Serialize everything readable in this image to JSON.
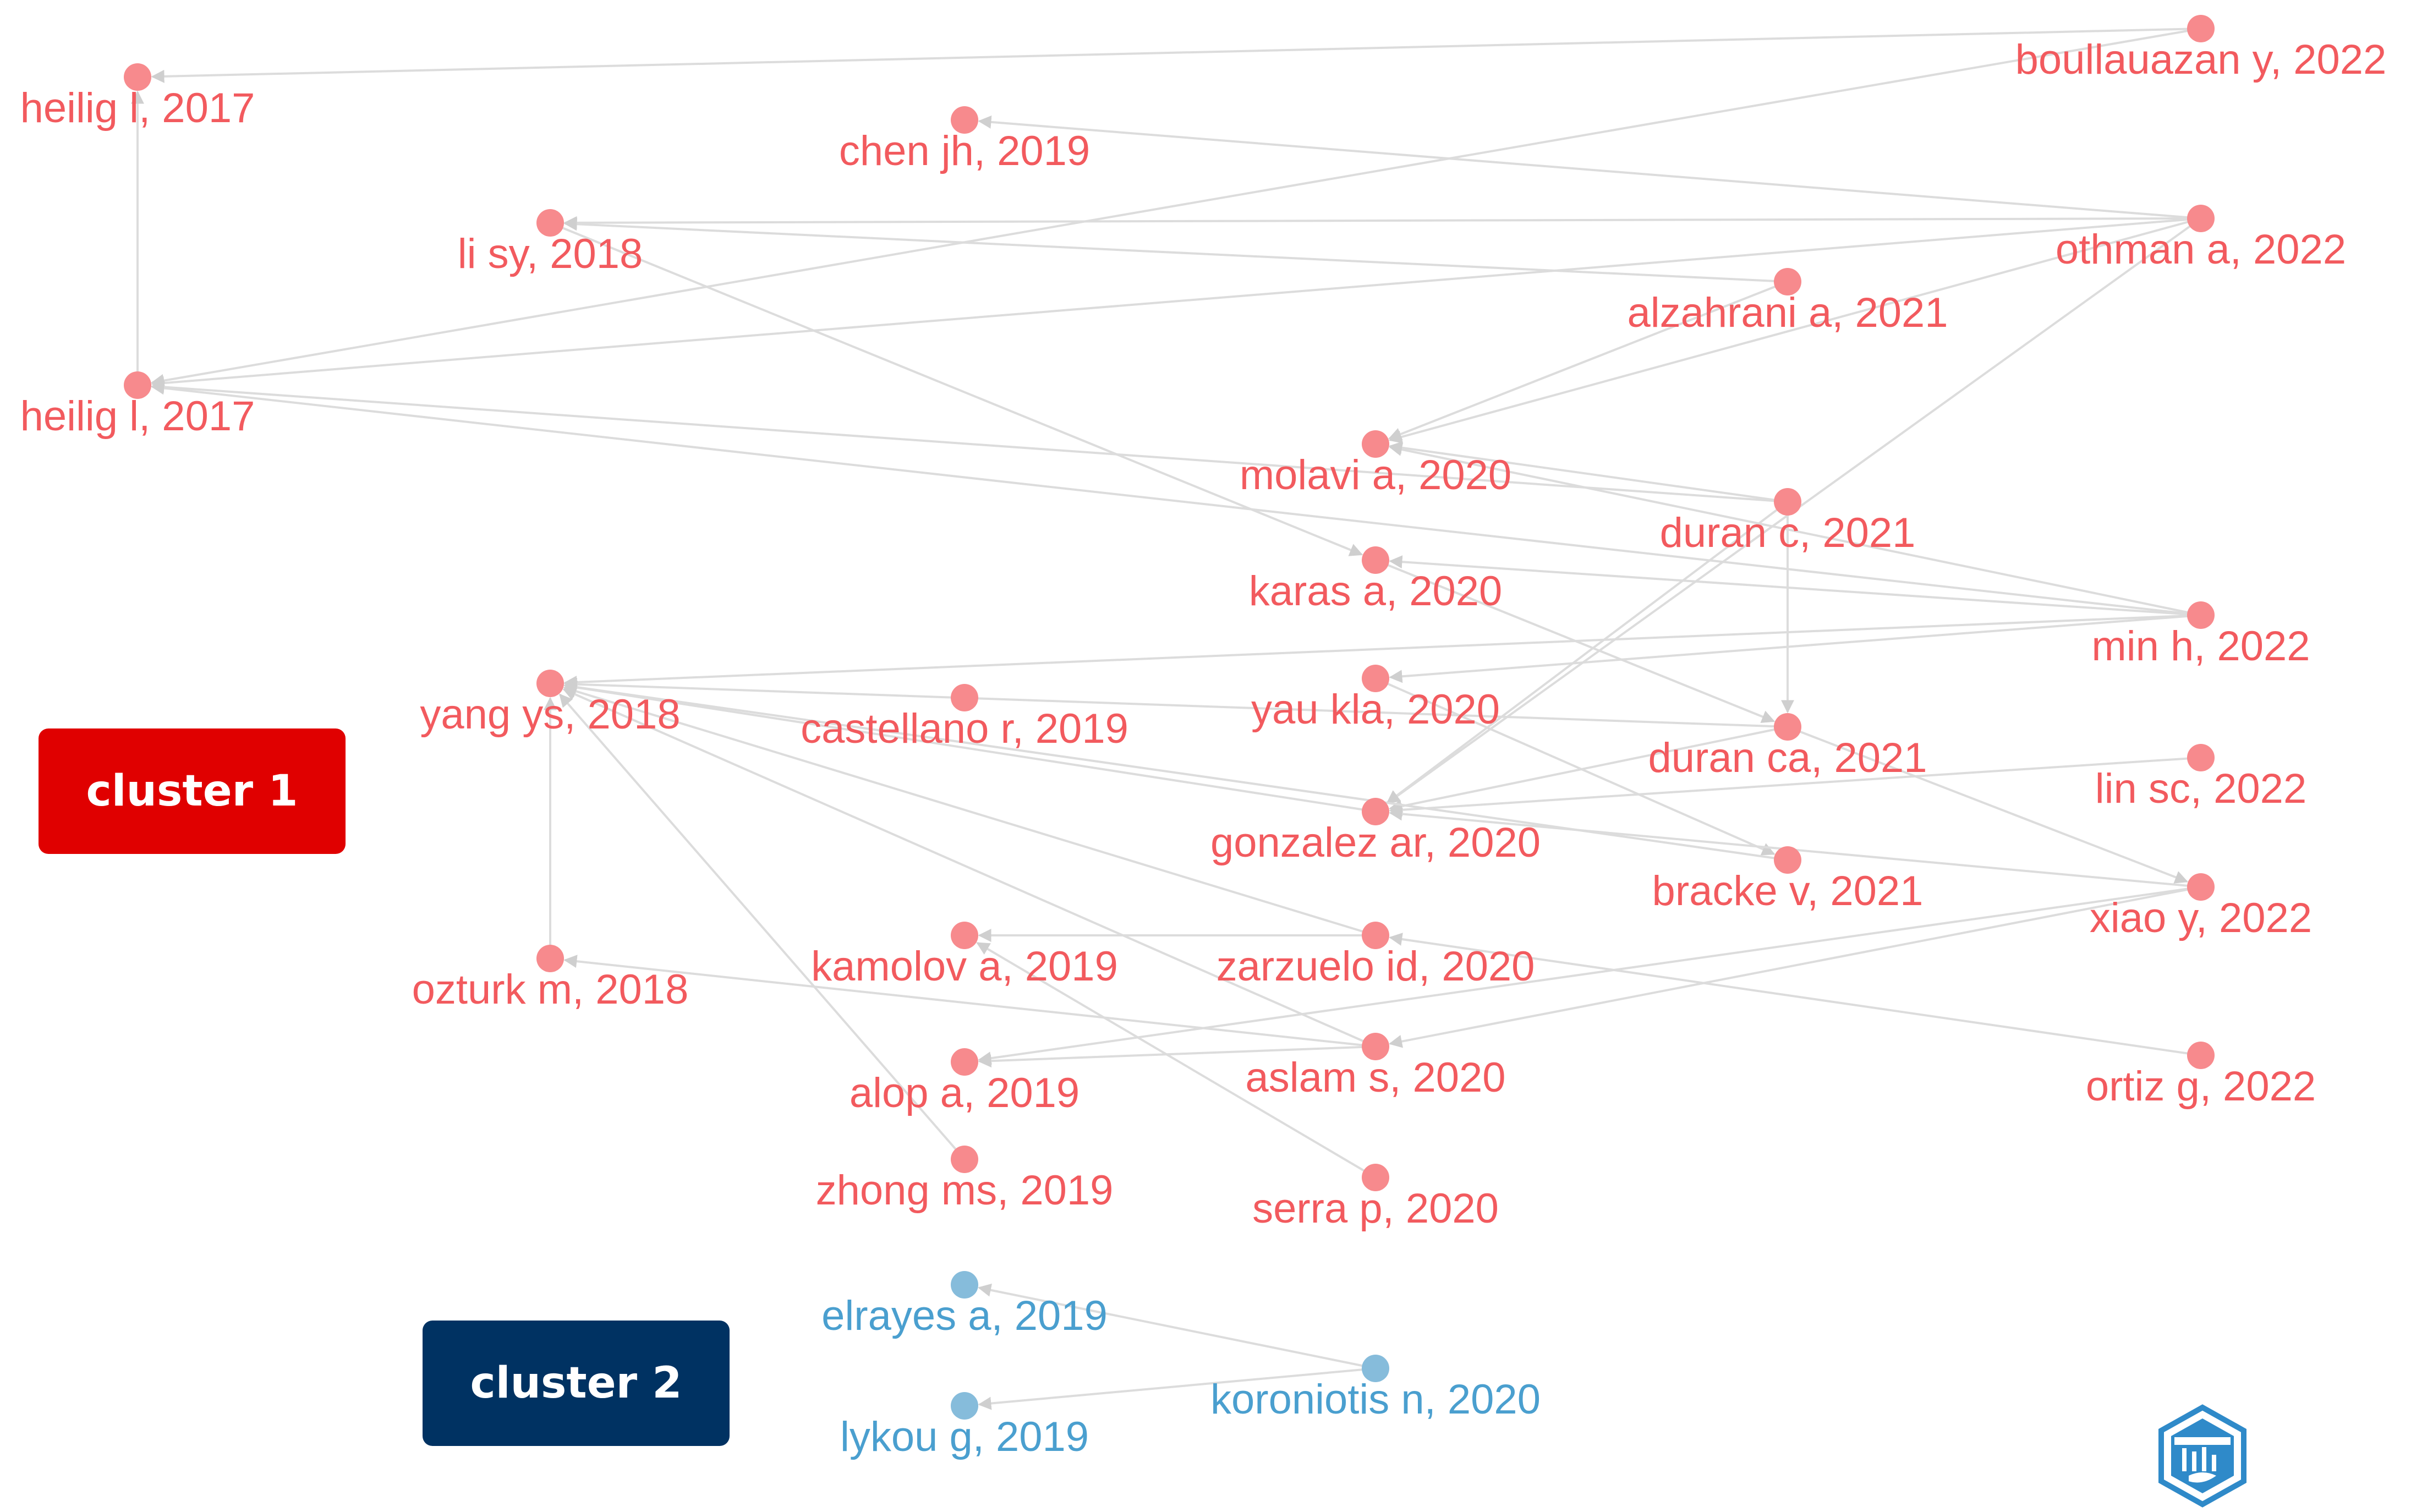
{
  "colors": {
    "cluster1_node": "#f78a8d",
    "cluster1_label": "#f25a5e",
    "cluster2_node": "#86bcdb",
    "cluster2_label": "#4a9fcf",
    "edge": "#dcdcdc",
    "cluster1_box": "#e00000",
    "cluster2_box": "#003262",
    "logo": "#2f8ac9"
  },
  "clusters": [
    {
      "id": 1,
      "label": "cluster 1"
    },
    {
      "id": 2,
      "label": "cluster 2"
    }
  ],
  "nodes": [
    {
      "id": "heilig1",
      "label": "heilig l, 2017",
      "cluster": 1
    },
    {
      "id": "heilig2",
      "label": "heilig l, 2017",
      "cluster": 1
    },
    {
      "id": "chen",
      "label": "chen jh, 2019",
      "cluster": 1
    },
    {
      "id": "lisy",
      "label": "li sy, 2018",
      "cluster": 1
    },
    {
      "id": "boull",
      "label": "boullauazan y, 2022",
      "cluster": 1
    },
    {
      "id": "othman",
      "label": "othman a, 2022",
      "cluster": 1
    },
    {
      "id": "alzahrani",
      "label": "alzahrani a, 2021",
      "cluster": 1
    },
    {
      "id": "molavi",
      "label": "molavi a, 2020",
      "cluster": 1
    },
    {
      "id": "duranc",
      "label": "duran c, 2021",
      "cluster": 1
    },
    {
      "id": "karas",
      "label": "karas a, 2020",
      "cluster": 1
    },
    {
      "id": "minh",
      "label": "min h, 2022",
      "cluster": 1
    },
    {
      "id": "yang",
      "label": "yang ys, 2018",
      "cluster": 1
    },
    {
      "id": "castellano",
      "label": "castellano r, 2019",
      "cluster": 1
    },
    {
      "id": "yau",
      "label": "yau kla, 2020",
      "cluster": 1
    },
    {
      "id": "duranca",
      "label": "duran ca, 2021",
      "cluster": 1
    },
    {
      "id": "linsc",
      "label": "lin sc, 2022",
      "cluster": 1
    },
    {
      "id": "gonzalez",
      "label": "gonzalez ar, 2020",
      "cluster": 1
    },
    {
      "id": "bracke",
      "label": "bracke v, 2021",
      "cluster": 1
    },
    {
      "id": "xiao",
      "label": "xiao y, 2022",
      "cluster": 1
    },
    {
      "id": "ozturk",
      "label": "ozturk m, 2018",
      "cluster": 1
    },
    {
      "id": "kamolov",
      "label": "kamolov a, 2019",
      "cluster": 1
    },
    {
      "id": "zarzuelo",
      "label": "zarzuelo id, 2020",
      "cluster": 1
    },
    {
      "id": "alop",
      "label": "alop a, 2019",
      "cluster": 1
    },
    {
      "id": "aslam",
      "label": "aslam s, 2020",
      "cluster": 1
    },
    {
      "id": "ortiz",
      "label": "ortiz g, 2022",
      "cluster": 1
    },
    {
      "id": "zhong",
      "label": "zhong ms, 2019",
      "cluster": 1
    },
    {
      "id": "serra",
      "label": "serra p, 2020",
      "cluster": 1
    },
    {
      "id": "elrayes",
      "label": "elrayes a, 2019",
      "cluster": 2
    },
    {
      "id": "koroniotis",
      "label": "koroniotis n, 2020",
      "cluster": 2
    },
    {
      "id": "lykou",
      "label": "lykou g, 2019",
      "cluster": 2
    }
  ],
  "edges": [
    [
      "boull",
      "heilig1"
    ],
    [
      "boull",
      "heilig2"
    ],
    [
      "heilig2",
      "heilig1"
    ],
    [
      "othman",
      "chen"
    ],
    [
      "othman",
      "lisy"
    ],
    [
      "othman",
      "heilig2"
    ],
    [
      "othman",
      "molavi"
    ],
    [
      "othman",
      "gonzalez"
    ],
    [
      "alzahrani",
      "lisy"
    ],
    [
      "alzahrani",
      "molavi"
    ],
    [
      "duranc",
      "molavi"
    ],
    [
      "duranc",
      "heilig2"
    ],
    [
      "duranc",
      "gonzalez"
    ],
    [
      "duranc",
      "duranca"
    ],
    [
      "minh",
      "heilig2"
    ],
    [
      "minh",
      "karas"
    ],
    [
      "minh",
      "yang"
    ],
    [
      "minh",
      "yau"
    ],
    [
      "minh",
      "molavi"
    ],
    [
      "lisy",
      "karas"
    ],
    [
      "karas",
      "duranca"
    ],
    [
      "yau",
      "bracke"
    ],
    [
      "duranca",
      "gonzalez"
    ],
    [
      "duranca",
      "yang"
    ],
    [
      "linsc",
      "gonzalez"
    ],
    [
      "xiao",
      "alop"
    ],
    [
      "xiao",
      "aslam"
    ],
    [
      "xiao",
      "gonzalez"
    ],
    [
      "duranca",
      "xiao"
    ],
    [
      "bracke",
      "yang"
    ],
    [
      "gonzalez",
      "yang"
    ],
    [
      "zarzuelo",
      "yang"
    ],
    [
      "zarzuelo",
      "kamolov"
    ],
    [
      "aslam",
      "yang"
    ],
    [
      "aslam",
      "ozturk"
    ],
    [
      "aslam",
      "alop"
    ],
    [
      "zhong",
      "yang"
    ],
    [
      "serra",
      "kamolov"
    ],
    [
      "ozturk",
      "yang"
    ],
    [
      "ortiz",
      "zarzuelo"
    ],
    [
      "koroniotis",
      "elrayes"
    ],
    [
      "koroniotis",
      "lykou"
    ]
  ],
  "logo": {
    "icon": "bibliometrix-hexagon-logo"
  }
}
